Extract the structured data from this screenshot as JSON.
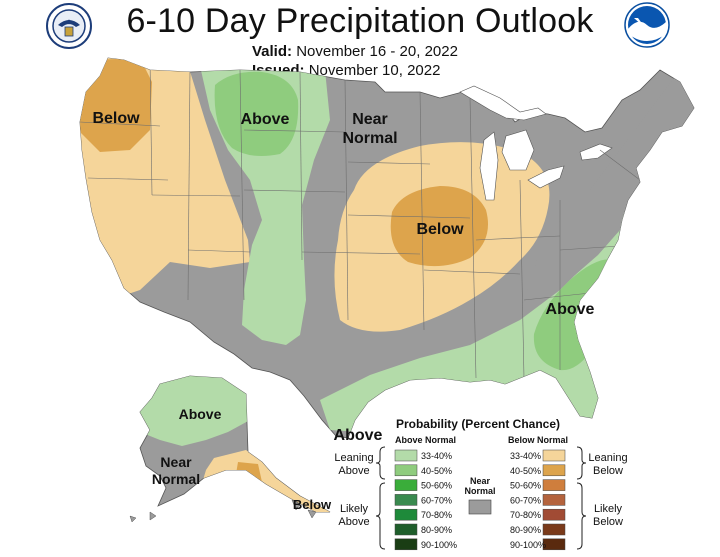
{
  "title": "6-10 Day Precipitation Outlook",
  "valid_label": "Valid:",
  "valid_dates": "November 16 - 20, 2022",
  "issued_label": "Issued:",
  "issued_date": "November 10, 2022",
  "map_labels": {
    "northwest": "Below",
    "north_plains": "Above",
    "north_central_line1": "Near",
    "north_central_line2": "Normal",
    "midwest": "Below",
    "southeast": "Above",
    "gulf": "Above",
    "alaska_north": "Above",
    "alaska_mid_line1": "Near",
    "alaska_mid_line2": "Normal",
    "alaska_south": "Below"
  },
  "legend": {
    "title": "Probability (Percent Chance)",
    "above_header": "Above Normal",
    "below_header": "Below Normal",
    "leaning_above_1": "Leaning",
    "leaning_above_2": "Above",
    "likely_above_1": "Likely",
    "likely_above_2": "Above",
    "leaning_below_1": "Leaning",
    "leaning_below_2": "Below",
    "likely_below_1": "Likely",
    "likely_below_2": "Below",
    "near_1": "Near",
    "near_2": "Normal",
    "above_bins": [
      "33-40%",
      "40-50%",
      "50-60%",
      "60-70%",
      "70-80%",
      "80-90%",
      "90-100%"
    ],
    "below_bins": [
      "33-40%",
      "40-50%",
      "50-60%",
      "60-70%",
      "70-80%",
      "80-90%",
      "90-100%"
    ],
    "above_colors": [
      "#b3dba9",
      "#8fcc7e",
      "#3aad3a",
      "#3a8a4f",
      "#1e8a3a",
      "#1f5e2b",
      "#1a3d14"
    ],
    "below_colors": [
      "#f5d59a",
      "#dda44c",
      "#cf7e3d",
      "#b4633d",
      "#a14b34",
      "#7a3a1a",
      "#5a2a0e"
    ],
    "near_color": "#9b9b9b"
  },
  "colors": {
    "near_normal": "#9b9b9b",
    "leaning_above": "#b3dba9",
    "above_40": "#8fcc7e",
    "leaning_below": "#f5d59a",
    "below_40": "#dda44c"
  },
  "icons": [
    "commerce-seal-icon",
    "noaa-logo-icon"
  ]
}
